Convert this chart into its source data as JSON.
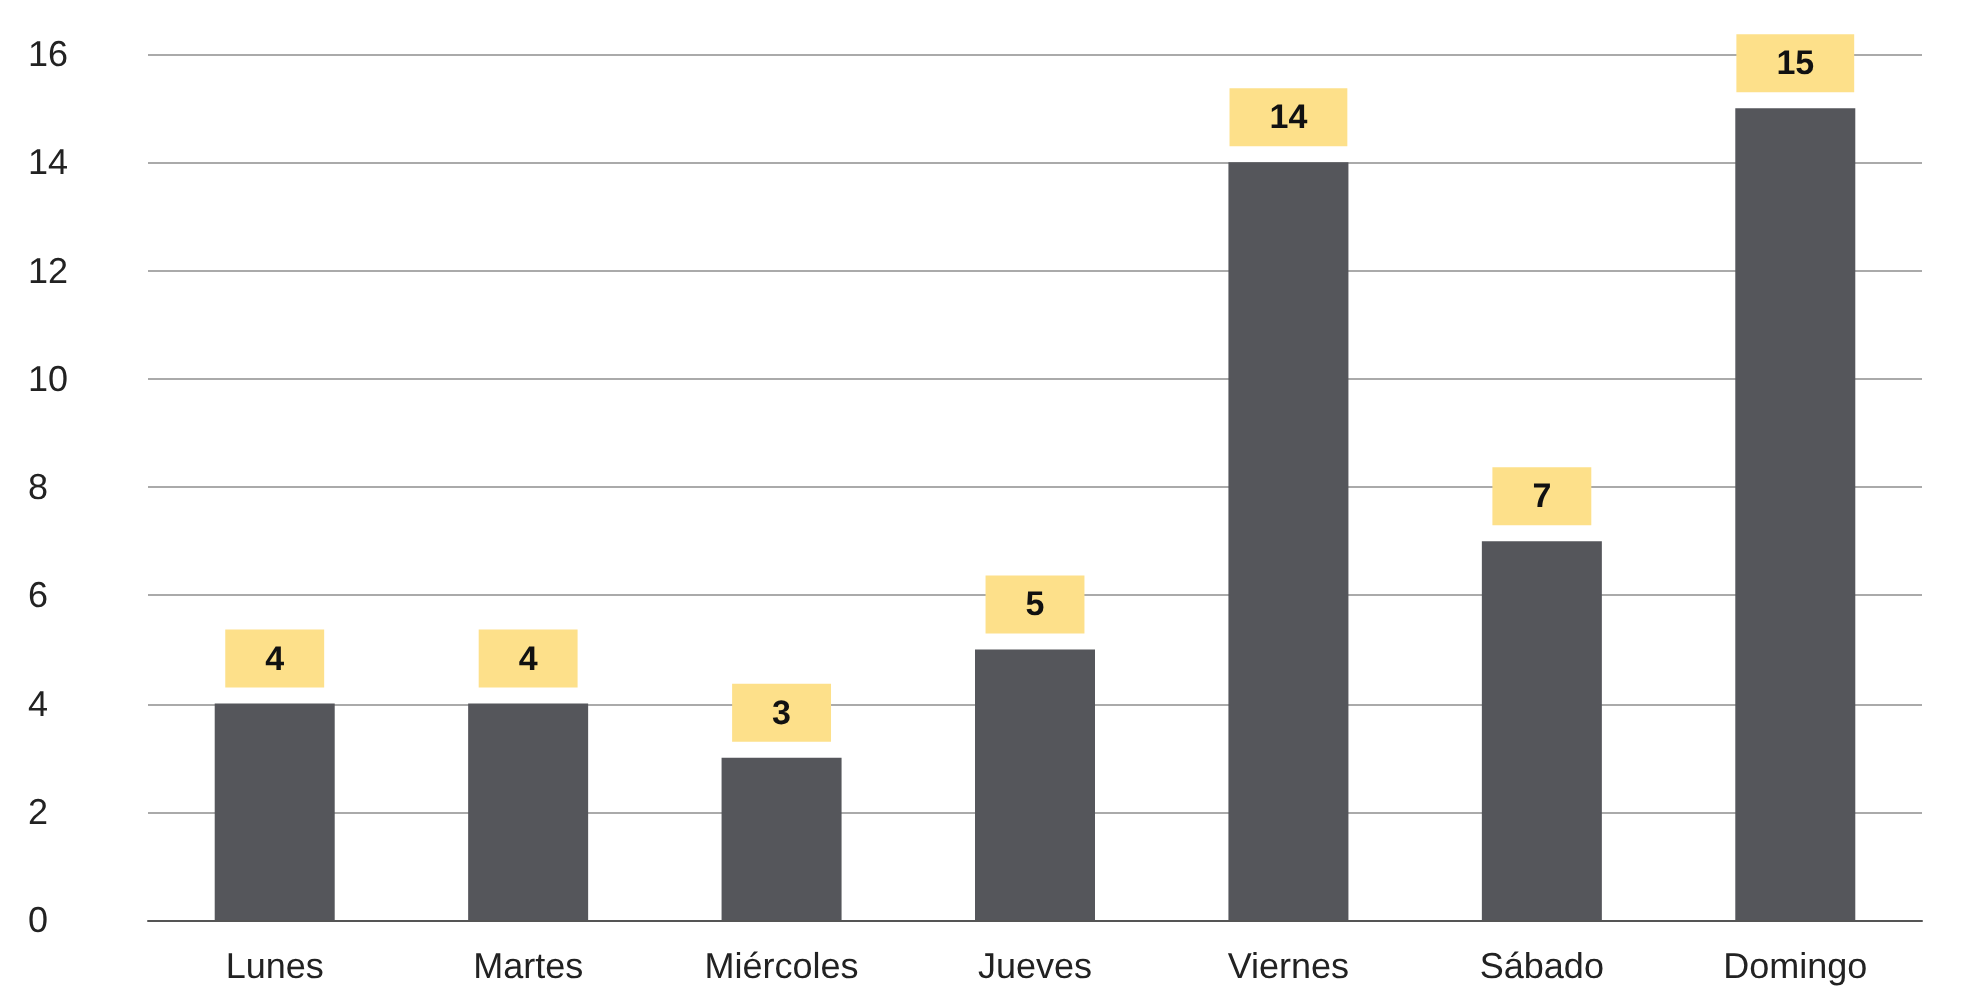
{
  "chart_data": {
    "type": "bar",
    "categories": [
      "Lunes",
      "Martes",
      "Miércoles",
      "Jueves",
      "Viernes",
      "Sábado",
      "Domingo"
    ],
    "values": [
      4,
      4,
      3,
      5,
      14,
      7,
      15
    ],
    "color": "#55565b",
    "ylim": [
      0,
      16
    ],
    "yticks": [
      0,
      2,
      4,
      6,
      8,
      10,
      12,
      14,
      16
    ],
    "grid": "y",
    "data_labels": true
  }
}
